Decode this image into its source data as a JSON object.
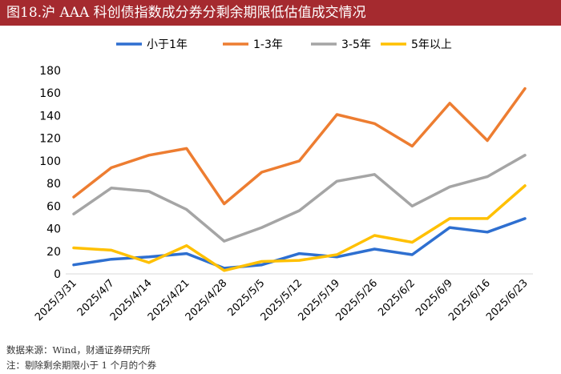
{
  "figure": {
    "title": "图18.沪 AAA 科创债指数成分券分剩余期限低估值成交情况",
    "source": "数据来源：Wind，财通证券研究所",
    "note": "注：剔除剩余期限小于 1 个月的个券"
  },
  "chart_data": {
    "type": "line",
    "title": "",
    "xlabel": "",
    "ylabel": "",
    "ylim": [
      0,
      180
    ],
    "yticks": [
      0,
      20,
      40,
      60,
      80,
      100,
      120,
      140,
      160,
      180
    ],
    "grid": false,
    "legend_position": "top",
    "categories": [
      "2025/3/31",
      "2025/4/7",
      "2025/4/14",
      "2025/4/21",
      "2025/4/28",
      "2025/5/5",
      "2025/5/12",
      "2025/5/19",
      "2025/5/26",
      "2025/6/2",
      "2025/6/9",
      "2025/6/16",
      "2025/6/23"
    ],
    "series": [
      {
        "name": "小于1年",
        "color": "#2e6fd0",
        "values": [
          8,
          13,
          15,
          18,
          5,
          8,
          18,
          15,
          22,
          17,
          41,
          37,
          49
        ]
      },
      {
        "name": "1-3年",
        "color": "#ed7d31",
        "values": [
          68,
          94,
          105,
          111,
          62,
          90,
          100,
          141,
          133,
          113,
          151,
          118,
          164
        ]
      },
      {
        "name": "3-5年",
        "color": "#a5a5a5",
        "values": [
          53,
          76,
          73,
          57,
          29,
          41,
          56,
          82,
          88,
          60,
          77,
          86,
          105
        ]
      },
      {
        "name": "5年以上",
        "color": "#ffc000",
        "values": [
          23,
          21,
          10,
          25,
          3,
          11,
          12,
          17,
          34,
          28,
          49,
          49,
          78
        ]
      }
    ]
  }
}
